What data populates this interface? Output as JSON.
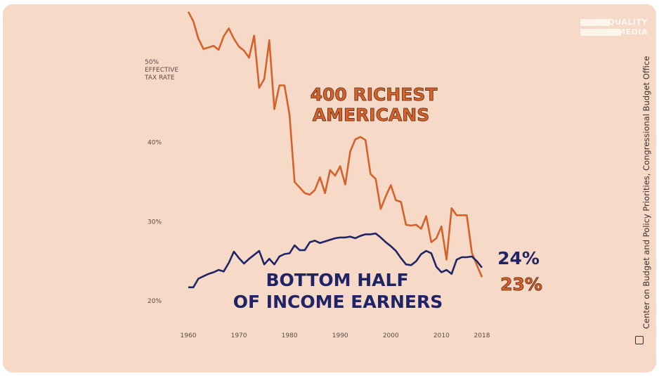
{
  "chart_data": {
    "type": "line",
    "title": "",
    "ylabel": "50%\nEFFECTIVE\nTAX RATE",
    "y_ticks": [
      "20%",
      "30%",
      "40%",
      "50%"
    ],
    "y_tick_values": [
      20,
      30,
      40,
      50
    ],
    "x_ticks": [
      "1960",
      "1970",
      "1980",
      "1990",
      "2000",
      "2010",
      "2018"
    ],
    "x_tick_values": [
      1960,
      1970,
      1980,
      1990,
      2000,
      2010,
      2018
    ],
    "xlim": [
      1960,
      2018
    ],
    "ylim": [
      20,
      57
    ],
    "grid": false,
    "x": [
      1960,
      1961,
      1962,
      1963,
      1964,
      1965,
      1966,
      1967,
      1968,
      1969,
      1970,
      1971,
      1972,
      1973,
      1974,
      1975,
      1976,
      1977,
      1978,
      1979,
      1980,
      1981,
      1982,
      1983,
      1984,
      1985,
      1986,
      1987,
      1988,
      1989,
      1990,
      1991,
      1992,
      1993,
      1994,
      1995,
      1996,
      1997,
      1998,
      1999,
      2000,
      2001,
      2002,
      2003,
      2004,
      2005,
      2006,
      2007,
      2008,
      2009,
      2010,
      2011,
      2012,
      2013,
      2014,
      2015,
      2016,
      2017,
      2018
    ],
    "series": [
      {
        "name": "400 RICHEST AMERICANS",
        "color": "#d4622a",
        "end_label": "23%",
        "values": [
          56.5,
          55.3,
          53.1,
          51.8,
          52.0,
          52.2,
          51.7,
          53.4,
          54.4,
          53.1,
          52.1,
          51.6,
          50.7,
          53.5,
          46.9,
          48.0,
          52.9,
          44.2,
          47.2,
          47.2,
          43.5,
          35.0,
          34.3,
          33.6,
          33.4,
          34.0,
          35.6,
          33.6,
          36.5,
          35.8,
          37.0,
          34.7,
          38.9,
          40.4,
          40.7,
          40.3,
          36.0,
          35.4,
          31.6,
          33.2,
          34.6,
          32.7,
          32.5,
          29.6,
          29.5,
          29.6,
          29.1,
          30.7,
          27.4,
          27.9,
          29.4,
          25.2,
          31.7,
          30.8,
          30.8,
          30.8,
          26.1,
          24.5,
          23.0
        ]
      },
      {
        "name": "BOTTOM HALF OF INCOME EARNERS",
        "color": "#1f2466",
        "end_label": "24%",
        "values": [
          21.7,
          21.7,
          22.8,
          23.1,
          23.4,
          23.6,
          23.9,
          23.7,
          24.8,
          26.2,
          25.4,
          24.7,
          25.3,
          25.8,
          26.3,
          24.6,
          25.3,
          24.6,
          25.6,
          25.9,
          26.0,
          27.0,
          26.4,
          26.4,
          27.4,
          27.6,
          27.3,
          27.5,
          27.7,
          27.9,
          28.0,
          28.0,
          28.1,
          27.9,
          28.2,
          28.4,
          28.4,
          28.5,
          28.0,
          27.4,
          26.9,
          26.3,
          25.4,
          24.6,
          24.5,
          25.0,
          25.9,
          26.3,
          26.0,
          24.3,
          23.6,
          23.9,
          23.4,
          25.2,
          25.5,
          25.5,
          25.6,
          25.0,
          24.2
        ]
      }
    ]
  },
  "labels": {
    "rich_line1": "400 RICHEST",
    "rich_line2": "AMERICANS",
    "bottom_line1": "BOTTOM HALF",
    "bottom_line2": "OF INCOME EARNERS"
  },
  "logo": {
    "line1": "INEQUALITY",
    "line2": "MEDIA"
  },
  "source": "Center on Budget and Policy Priorities, Congressional Budget Office",
  "colors": {
    "background": "#f7d9c8",
    "orange": "#d4622a",
    "navy": "#1f2466"
  }
}
